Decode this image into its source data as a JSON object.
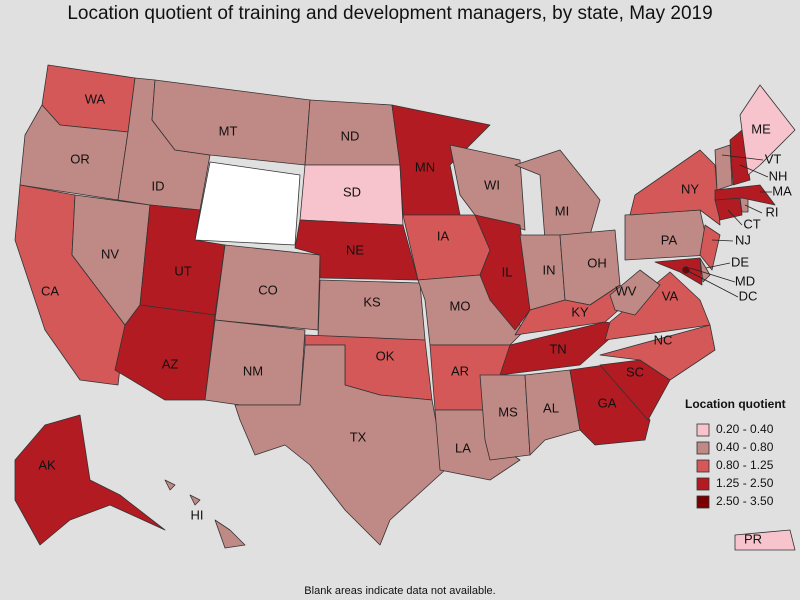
{
  "title": "Location quotient of training and development managers, by state, May 2019",
  "states": [
    {
      "label": "WA",
      "range": "0.80 - 1.25"
    },
    {
      "label": "OR",
      "range": "0.40 - 0.80"
    },
    {
      "label": "CA",
      "range": "0.80 - 1.25"
    },
    {
      "label": "NV",
      "range": "0.40 - 0.80"
    },
    {
      "label": "ID",
      "range": "0.40 - 0.80"
    },
    {
      "label": "MT",
      "range": "0.40 - 0.80"
    },
    {
      "label": null,
      "range": null
    },
    {
      "label": "UT",
      "range": "1.25 - 2.50"
    },
    {
      "label": "AZ",
      "range": "1.25 - 2.50"
    },
    {
      "label": "CO",
      "range": "0.40 - 0.80"
    },
    {
      "label": "NM",
      "range": "0.40 - 0.80"
    },
    {
      "label": "ND",
      "range": "0.40 - 0.80"
    },
    {
      "label": "SD",
      "range": "0.20 - 0.40"
    },
    {
      "label": "NE",
      "range": "1.25 - 2.50"
    },
    {
      "label": "KS",
      "range": "0.40 - 0.80"
    },
    {
      "label": "OK",
      "range": "0.80 - 1.25"
    },
    {
      "label": "TX",
      "range": "0.40 - 0.80"
    },
    {
      "label": "MN",
      "range": "1.25 - 2.50"
    },
    {
      "label": "IA",
      "range": "0.80 - 1.25"
    },
    {
      "label": "MO",
      "range": "0.40 - 0.80"
    },
    {
      "label": "AR",
      "range": "0.80 - 1.25"
    },
    {
      "label": "LA",
      "range": "0.40 - 0.80"
    },
    {
      "label": "WI",
      "range": "0.40 - 0.80"
    },
    {
      "label": "IL",
      "range": "1.25 - 2.50"
    },
    {
      "label": "MI",
      "range": "0.40 - 0.80"
    },
    {
      "label": "IN",
      "range": "0.40 - 0.80"
    },
    {
      "label": "OH",
      "range": "0.40 - 0.80"
    },
    {
      "label": "KY",
      "range": "0.80 - 1.25"
    },
    {
      "label": "TN",
      "range": "1.25 - 2.50"
    },
    {
      "label": "MS",
      "range": "0.40 - 0.80"
    },
    {
      "label": "AL",
      "range": "0.40 - 0.80"
    },
    {
      "label": "GA",
      "range": "1.25 - 2.50"
    },
    {
      "label": "SC",
      "range": "1.25 - 2.50"
    },
    {
      "label": "NC",
      "range": "0.80 - 1.25"
    },
    {
      "label": "VA",
      "range": "0.80 - 1.25"
    },
    {
      "label": "WV",
      "range": "0.40 - 0.80"
    },
    {
      "label": "PA",
      "range": "0.40 - 0.80"
    },
    {
      "label": "NY",
      "range": "0.80 - 1.25"
    },
    {
      "label": "MD",
      "range": "1.25 - 2.50"
    },
    {
      "label": "DE",
      "range": "0.40 - 0.80"
    },
    {
      "label": "NJ",
      "range": "0.80 - 1.25"
    },
    {
      "label": "CT",
      "range": "1.25 - 2.50"
    },
    {
      "label": "RI",
      "range": "0.40 - 0.80"
    },
    {
      "label": "MA",
      "range": "1.25 - 2.50"
    },
    {
      "label": "VT",
      "range": "0.40 - 0.80"
    },
    {
      "label": "NH",
      "range": "1.25 - 2.50"
    },
    {
      "label": "ME",
      "range": "0.20 - 0.40"
    },
    {
      "label": "AK",
      "range": "1.25 - 2.50"
    },
    {
      "label": "HI",
      "range": "0.40 - 0.80"
    },
    {
      "label": "PR",
      "range": "0.20 - 0.40"
    },
    {
      "label": "DC",
      "range": "2.50 - 3.50"
    }
  ],
  "legend": {
    "title": "Location quotient",
    "items": [
      {
        "label": "0.20 - 0.40",
        "color": "#f7c3cc"
      },
      {
        "label": "0.40 - 0.80",
        "color": "#bf8985"
      },
      {
        "label": "0.80 - 1.25",
        "color": "#d45858"
      },
      {
        "label": "1.25 - 2.50",
        "color": "#b31b22"
      },
      {
        "label": "2.50 - 3.50",
        "color": "#7a0000"
      }
    ]
  },
  "footnote": "Blank areas indicate data not available."
}
